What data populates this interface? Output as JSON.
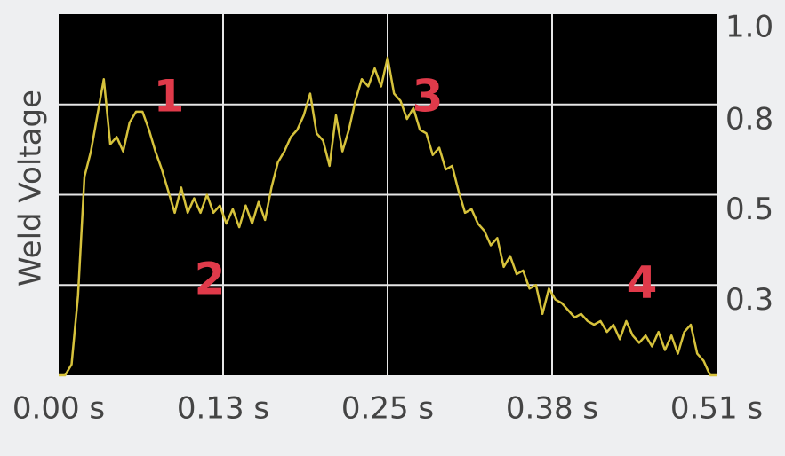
{
  "chart_data": {
    "type": "line",
    "ylabel": "Weld Voltage",
    "x": [
      0,
      0.005,
      0.01,
      0.015,
      0.02,
      0.025,
      0.03,
      0.035,
      0.04,
      0.045,
      0.05,
      0.055,
      0.06,
      0.065,
      0.07,
      0.075,
      0.08,
      0.085,
      0.09,
      0.095,
      0.1,
      0.105,
      0.11,
      0.115,
      0.12,
      0.125,
      0.13,
      0.135,
      0.14,
      0.145,
      0.15,
      0.155,
      0.16,
      0.165,
      0.17,
      0.175,
      0.18,
      0.185,
      0.19,
      0.195,
      0.2,
      0.205,
      0.21,
      0.215,
      0.22,
      0.225,
      0.23,
      0.235,
      0.24,
      0.245,
      0.25,
      0.255,
      0.26,
      0.265,
      0.27,
      0.275,
      0.28,
      0.285,
      0.29,
      0.295,
      0.3,
      0.305,
      0.31,
      0.315,
      0.32,
      0.325,
      0.33,
      0.335,
      0.34,
      0.345,
      0.35,
      0.355,
      0.36,
      0.365,
      0.37,
      0.375,
      0.38,
      0.385,
      0.39,
      0.395,
      0.4,
      0.405,
      0.41,
      0.415,
      0.42,
      0.425,
      0.43,
      0.435,
      0.44,
      0.445,
      0.45,
      0.455,
      0.46,
      0.465,
      0.47,
      0.475,
      0.48,
      0.485,
      0.49,
      0.495,
      0.5,
      0.505,
      0.51
    ],
    "series": [
      {
        "color": "#d6c23c",
        "values": [
          0,
          0,
          0.03,
          0.22,
          0.55,
          0.62,
          0.72,
          0.82,
          0.64,
          0.66,
          0.62,
          0.7,
          0.73,
          0.73,
          0.68,
          0.62,
          0.57,
          0.51,
          0.45,
          0.52,
          0.45,
          0.49,
          0.45,
          0.5,
          0.45,
          0.47,
          0.42,
          0.46,
          0.41,
          0.47,
          0.42,
          0.48,
          0.43,
          0.52,
          0.59,
          0.62,
          0.66,
          0.68,
          0.72,
          0.78,
          0.67,
          0.65,
          0.58,
          0.72,
          0.62,
          0.68,
          0.76,
          0.82,
          0.8,
          0.85,
          0.8,
          0.88,
          0.78,
          0.76,
          0.71,
          0.74,
          0.68,
          0.67,
          0.61,
          0.63,
          0.57,
          0.58,
          0.51,
          0.45,
          0.46,
          0.42,
          0.4,
          0.36,
          0.38,
          0.3,
          0.33,
          0.28,
          0.29,
          0.24,
          0.25,
          0.17,
          0.24,
          0.21,
          0.2,
          0.18,
          0.16,
          0.17,
          0.15,
          0.14,
          0.15,
          0.12,
          0.14,
          0.1,
          0.15,
          0.11,
          0.09,
          0.11,
          0.08,
          0.12,
          0.07,
          0.11,
          0.06,
          0.12,
          0.14,
          0.06,
          0.04,
          0,
          0
        ]
      }
    ],
    "xlim": [
      0,
      0.51
    ],
    "xticks": [
      {
        "value": 0,
        "label": "0.00 s"
      },
      {
        "value": 0.1275,
        "label": "0.13 s"
      },
      {
        "value": 0.255,
        "label": "0.25 s"
      },
      {
        "value": 0.3825,
        "label": "0.38 s"
      },
      {
        "value": 0.51,
        "label": "0.51 s"
      }
    ],
    "ylim": [
      0,
      1
    ],
    "yticks": [
      {
        "value": 0.25,
        "label": "0.3"
      },
      {
        "value": 0.5,
        "label": "0.5"
      },
      {
        "value": 0.75,
        "label": "0.8"
      },
      {
        "value": 1,
        "label": "1.0"
      }
    ],
    "grid": true,
    "annotations": [
      "1",
      "2",
      "3",
      "4"
    ]
  }
}
